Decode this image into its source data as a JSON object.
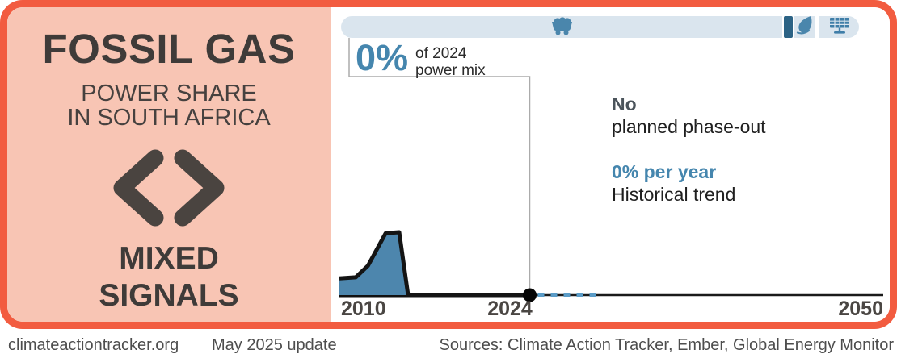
{
  "colors": {
    "border_orange": "#f25c40",
    "panel_salmon": "#f8c5b4",
    "accent_blue": "#4586ae",
    "bar_light_blue": "#dae5ee",
    "gas_segment_dark_blue": "#2c6385",
    "area_fill_blue": "#4d86ad",
    "projection_dash_blue": "#5b9cc7",
    "dark_text": "#3f3b39"
  },
  "left_panel": {
    "title": "FOSSIL GAS",
    "subtitle_line1": "POWER SHARE",
    "subtitle_line2": "IN SOUTH AFRICA",
    "rating_icon": "mixed-signals-chevrons-icon",
    "rating_line1": "MIXED",
    "rating_line2": "SIGNALS"
  },
  "power_mix_bar": {
    "description": "2024 power mix composition bar",
    "segments": [
      {
        "name": "coal",
        "icon": "coal-cart-icon"
      },
      {
        "name": "fossil-gas",
        "icon": null,
        "highlighted": true
      },
      {
        "name": "oil",
        "icon": "oil-drop-icon"
      },
      {
        "name": "renewables",
        "icon": "solar-panel-icon"
      }
    ]
  },
  "callout": {
    "value": "0%",
    "label_line1": "of 2024",
    "label_line2": "power mix"
  },
  "phase_out": {
    "emphasis": "No",
    "rest": "planned phase-out"
  },
  "trend": {
    "emphasis": "0% per year",
    "rest": "Historical trend"
  },
  "timeline": {
    "start_label": "2010",
    "marker_label": "2024",
    "end_label": "2050"
  },
  "footer": {
    "site": "climateactiontracker.org",
    "update": "May 2025 update",
    "sources": "Sources: Climate Action Tracker, Ember, Global Energy Monitor"
  },
  "chart_data": {
    "type": "area",
    "title": "Fossil gas power share in South Africa",
    "unit": "% of power mix",
    "xlim": [
      2010,
      2050
    ],
    "ylim": [
      0,
      8
    ],
    "x": [
      2010,
      2011.2,
      2012.1,
      2013.4,
      2014.4,
      2015.05,
      2016,
      2024
    ],
    "values": [
      1.6,
      1.7,
      2.8,
      5.9,
      6.0,
      0,
      0,
      0
    ],
    "marker": {
      "year": 2024,
      "value": 0,
      "label": "0% of 2024 power mix"
    },
    "projection": {
      "from": 2024,
      "to": 2029,
      "value": 0,
      "style": "dashed",
      "label": "0% per year historical trend"
    },
    "axis_ticks": [
      "2010",
      "2024",
      "2050"
    ],
    "grid": false,
    "legend": false
  }
}
